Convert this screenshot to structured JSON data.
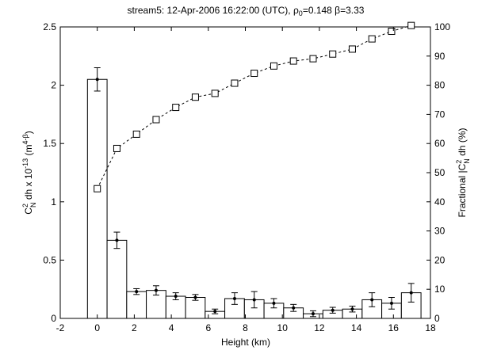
{
  "chart_data": {
    "type": "bar",
    "title": "stream5: 12-Apr-2006 16:22:00 (UTC), ρ0=0.148 β=3.33",
    "title_parts": {
      "prefix": "stream5: 12-Apr-2006 16:22:00 (UTC), ρ",
      "sub": "0",
      "suffix": "=0.148 β=3.33"
    },
    "xlabel": "Height (km)",
    "ylabel_left": "C2N dh x 10-13 (m4-β)",
    "ylabel_left_parts": {
      "c": "C",
      "sup2": "2",
      "subN": "N",
      "mid": " dh x 10",
      "exp": "-13",
      "unit_open": " (m",
      "unit_exp": "4-β",
      "unit_close": ")"
    },
    "ylabel_right": "Fractional |C2N dh  (%)",
    "ylabel_right_parts": {
      "prefix": "Fractional |C",
      "sup2": "2",
      "subN": "N",
      "suffix": " dh  (%)"
    },
    "xlim": [
      -2,
      18
    ],
    "ylim_left": [
      0,
      2.5
    ],
    "ylim_right": [
      0,
      100
    ],
    "xticks": [
      "-2",
      "0",
      "2",
      "4",
      "6",
      "8",
      "10",
      "12",
      "14",
      "16",
      "18"
    ],
    "xtick_values": [
      -2,
      0,
      2,
      4,
      6,
      8,
      10,
      12,
      14,
      16,
      18
    ],
    "yticks_left": [
      "0",
      "0.5",
      "1",
      "1.5",
      "2",
      "2.5"
    ],
    "ytick_left_values": [
      0,
      0.5,
      1,
      1.5,
      2,
      2.5
    ],
    "yticks_right": [
      "0",
      "10",
      "20",
      "30",
      "40",
      "50",
      "60",
      "70",
      "80",
      "90",
      "100"
    ],
    "ytick_right_values": [
      0,
      10,
      20,
      30,
      40,
      50,
      60,
      70,
      80,
      90,
      100
    ],
    "bar_width": 1.06,
    "bars": {
      "x": [
        0,
        1.06,
        2.12,
        3.18,
        4.24,
        5.3,
        6.36,
        7.42,
        8.48,
        9.54,
        10.6,
        11.66,
        12.72,
        13.78,
        14.84,
        15.9,
        16.96
      ],
      "values": [
        2.05,
        0.67,
        0.23,
        0.24,
        0.19,
        0.18,
        0.06,
        0.17,
        0.16,
        0.13,
        0.09,
        0.04,
        0.07,
        0.08,
        0.16,
        0.13,
        0.22
      ],
      "errors": [
        0.1,
        0.07,
        0.025,
        0.04,
        0.03,
        0.025,
        0.02,
        0.05,
        0.07,
        0.04,
        0.03,
        0.025,
        0.025,
        0.025,
        0.06,
        0.05,
        0.08
      ]
    },
    "cumulative": {
      "x": [
        0,
        1.06,
        2.12,
        3.18,
        4.24,
        5.3,
        6.36,
        7.42,
        8.48,
        9.54,
        10.6,
        11.66,
        12.72,
        13.78,
        14.84,
        15.9,
        16.96
      ],
      "values": [
        44.5,
        58.3,
        63.2,
        68.2,
        72.4,
        75.9,
        77.2,
        80.7,
        84.1,
        86.6,
        88.3,
        89.1,
        90.7,
        92.4,
        95.9,
        98.5,
        100.5
      ]
    },
    "grid": false
  }
}
